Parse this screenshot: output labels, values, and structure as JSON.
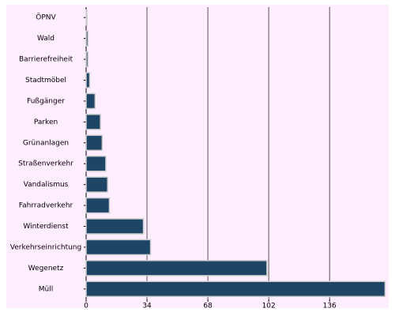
{
  "chart_data": {
    "type": "bar",
    "orientation": "horizontal",
    "categories": [
      "ÖPNV",
      "Wald",
      "Barrierefreiheit",
      "Stadtmöbel",
      "Fußgänger",
      "Parken",
      "Grünanlagen",
      "Straßenverkehr",
      "Vandalismus",
      "Fahrradverkehr",
      "Winterdienst",
      "Verkehrseinrichtung",
      "Wegenetz",
      "Müll"
    ],
    "values": [
      0.5,
      1,
      1,
      2,
      5,
      8,
      9,
      11,
      12,
      13,
      32,
      36,
      101,
      167
    ],
    "color": "#1f4566",
    "xlim": [
      0,
      169
    ],
    "xticks": [
      0,
      34,
      68,
      102,
      136
    ],
    "grid": true
  }
}
